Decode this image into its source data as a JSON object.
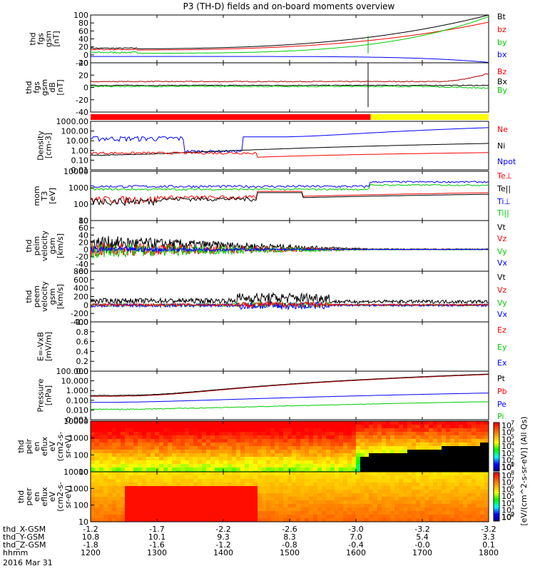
{
  "title": "P3 (TH-D) fields and on-board moments overview",
  "date_label": "2016 Mar 31",
  "chart_data": [
    {
      "type": "line",
      "panel": "fgs-gsm-B",
      "ylabel": [
        "thd",
        "fgs",
        "gsm",
        "[nT]"
      ],
      "yticks": [
        "100",
        "80",
        "60",
        "40",
        "20",
        "0",
        "-20"
      ],
      "ylim": [
        -20,
        100
      ],
      "series": [
        {
          "name": "Bt",
          "color": "#000000"
        },
        {
          "name": "bz",
          "color": "#ff0000"
        },
        {
          "name": "by",
          "color": "#00cc00"
        },
        {
          "name": "bx",
          "color": "#0000ff"
        }
      ]
    },
    {
      "type": "line",
      "panel": "fgs-gsm-dB",
      "ylabel": [
        "thd",
        "fgs",
        "gsm",
        "dB",
        "[nT]"
      ],
      "yticks": [
        "40",
        "20",
        "0",
        "-20",
        "-40"
      ],
      "ylim": [
        -50,
        40
      ],
      "series": [
        {
          "name": "Bz",
          "color": "#ff0000"
        },
        {
          "name": "Bx",
          "color": "#000000"
        },
        {
          "name": "By",
          "color": "#00cc00"
        }
      ]
    },
    {
      "type": "line",
      "panel": "mode-bar",
      "segments": [
        {
          "from": 1200,
          "to": 1622,
          "color": "#ff0000"
        },
        {
          "from": 1622,
          "to": 1800,
          "color": "#ffff00"
        }
      ]
    },
    {
      "type": "line",
      "panel": "density",
      "ylabel": [
        "Density",
        "[cm-3]"
      ],
      "yticks": [
        "1000.00",
        "100.00",
        "10.00",
        "1.00",
        "0.10",
        "0.01"
      ],
      "ylim": [
        0.01,
        1000
      ],
      "yscale": "log",
      "series": [
        {
          "name": "Ne",
          "color": "#ff0000"
        },
        {
          "name": "Ni",
          "color": "#000000"
        },
        {
          "name": "Npot",
          "color": "#0000ff"
        }
      ]
    },
    {
      "type": "line",
      "panel": "temperature",
      "ylabel": [
        "mom",
        "T3",
        "[eV]"
      ],
      "yticks": [
        "10000",
        "1000",
        "100",
        "10"
      ],
      "ylim": [
        10,
        10000
      ],
      "yscale": "log",
      "series": [
        {
          "name": "Te⊥",
          "color": "#ff0000"
        },
        {
          "name": "Te||",
          "color": "#000000"
        },
        {
          "name": "Ti⊥",
          "color": "#0000ff"
        },
        {
          "name": "Ti||",
          "color": "#00cc00"
        }
      ]
    },
    {
      "type": "line",
      "panel": "peim-velocity",
      "ylabel": [
        "thd",
        "peim",
        "velocity",
        "gsm",
        "[km/s]"
      ],
      "yticks": [
        "80",
        "60",
        "40",
        "20",
        "0",
        "-20",
        "-40",
        "-60"
      ],
      "ylim": [
        -60,
        80
      ],
      "series": [
        {
          "name": "Vt",
          "color": "#000000"
        },
        {
          "name": "Vz",
          "color": "#ff0000"
        },
        {
          "name": "Vy",
          "color": "#00cc00"
        },
        {
          "name": "Vx",
          "color": "#0000ff"
        }
      ]
    },
    {
      "type": "line",
      "panel": "peem-velocity",
      "ylabel": [
        "thd",
        "peem",
        "velocity",
        "gsm",
        "[km/s]"
      ],
      "yticks": [
        "800",
        "600",
        "400",
        "200",
        "0",
        "-200",
        "-400"
      ],
      "ylim": [
        -400,
        800
      ],
      "series": [
        {
          "name": "Vt",
          "color": "#000000"
        },
        {
          "name": "Vz",
          "color": "#ff0000"
        },
        {
          "name": "Vy",
          "color": "#00cc00"
        },
        {
          "name": "Vx",
          "color": "#0000ff"
        }
      ]
    },
    {
      "type": "line",
      "panel": "E-field",
      "ylabel": [
        "E=-VxB",
        "[mV/m]"
      ],
      "yticks": [
        "1.0",
        "0.8",
        "0.6",
        "0.4",
        "0.2",
        "0.0"
      ],
      "ylim": [
        0,
        1
      ],
      "series": [
        {
          "name": "Ez",
          "color": "#ff0000"
        },
        {
          "name": "Ey",
          "color": "#00cc00"
        },
        {
          "name": "Ex",
          "color": "#0000ff"
        }
      ]
    },
    {
      "type": "line",
      "panel": "pressure",
      "ylabel": [
        "Pressure",
        "[nPa]"
      ],
      "yticks": [
        "100.000",
        "10.000",
        "1.000",
        "0.100",
        "0.010",
        "0.001"
      ],
      "ylim": [
        0.001,
        100
      ],
      "yscale": "log",
      "series": [
        {
          "name": "Pt",
          "color": "#000000"
        },
        {
          "name": "Pb",
          "color": "#ff0000"
        },
        {
          "name": "Pe",
          "color": "#0000ff"
        },
        {
          "name": "Pi",
          "color": "#00cc00"
        }
      ]
    },
    {
      "type": "heatmap",
      "panel": "peir-en-eflux",
      "ylabel": [
        "thd",
        "peir",
        "en",
        "eflux",
        "eV",
        "(cm2-s-",
        "sr-eV)"
      ],
      "yticks": [
        "10000",
        "1000",
        "100",
        "10"
      ],
      "yscale": "log"
    },
    {
      "type": "heatmap",
      "panel": "peer-en-eflux",
      "ylabel": [
        "thd",
        "peer",
        "en",
        "eflux",
        "eV",
        "(cm2-s-",
        "sr-eV)"
      ],
      "yticks": [
        "10000",
        "1000",
        "100",
        "10"
      ],
      "yscale": "log"
    },
    {
      "type": "colorbar",
      "label": "[eV/(cm^2-s-sr-eV)] (All Qs)",
      "ticks": [
        "10",
        "10",
        "10",
        "10",
        "10",
        "10",
        "10"
      ],
      "exponents": [
        "7",
        "6",
        "5",
        "4",
        "3",
        "2",
        "1"
      ],
      "ticks2": [
        "10",
        "10",
        "10",
        "10",
        "10",
        "10",
        "10"
      ],
      "exponents2": [
        "8",
        "7",
        "6",
        "5",
        "4",
        "3",
        "2"
      ],
      "low_tick": "10",
      "low_exp": "0",
      "low_tick2": "10",
      "low_exp2": "0"
    }
  ],
  "xaxis": {
    "row_labels": [
      "thd_X-GSM",
      "thd_Y-GSM",
      "thd_Z-GSM",
      "hhmm"
    ],
    "ticks": [
      {
        "t": 1200,
        "x": "-1.2",
        "y": "10.8",
        "z": "-1.8",
        "hhmm": "1200"
      },
      {
        "t": 1300,
        "x": "-1.7",
        "y": "10.1",
        "z": "-1.6",
        "hhmm": "1300"
      },
      {
        "t": 1400,
        "x": "-2.2",
        "y": "9.3",
        "z": "-1.2",
        "hhmm": "1400"
      },
      {
        "t": 1500,
        "x": "-2.6",
        "y": "8.3",
        "z": "-0.8",
        "hhmm": "1500"
      },
      {
        "t": 1600,
        "x": "-3.0",
        "y": "7.0",
        "z": "-0.4",
        "hhmm": "1600"
      },
      {
        "t": 1700,
        "x": "-3.2",
        "y": "5.4",
        "z": "-0.0",
        "hhmm": "1700"
      },
      {
        "t": 1800,
        "x": "-3.2",
        "y": "3.3",
        "z": "0.1",
        "hhmm": "1800"
      }
    ]
  }
}
